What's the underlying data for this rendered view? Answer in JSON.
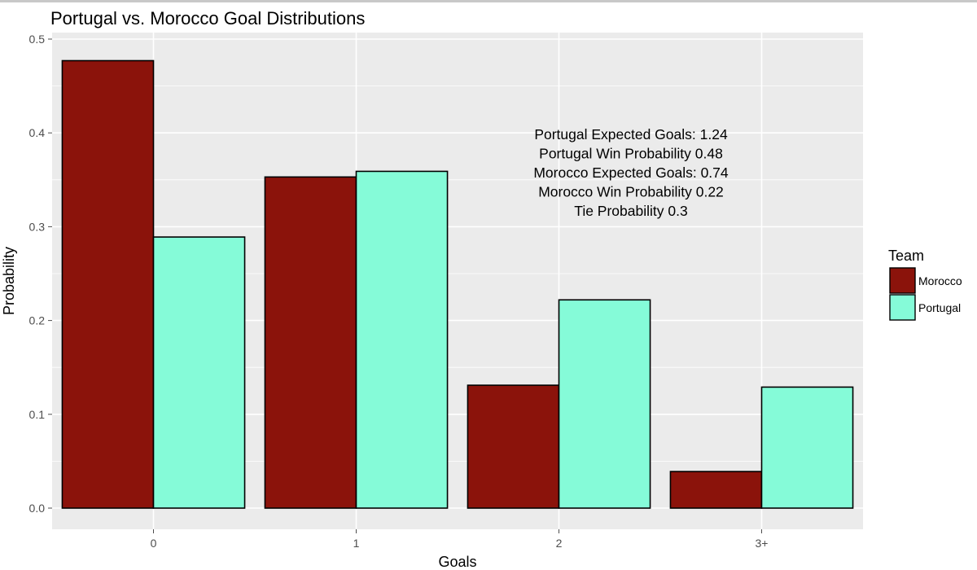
{
  "chart_data": {
    "type": "bar",
    "title": "Portugal vs. Morocco Goal Distributions",
    "xlabel": "Goals",
    "ylabel": "Probability",
    "categories": [
      "0",
      "1",
      "2",
      "3+"
    ],
    "ylim": [
      -0.022,
      0.5
    ],
    "yticks": [
      "0.0",
      "0.1",
      "0.2",
      "0.3",
      "0.4",
      "0.5"
    ],
    "series": [
      {
        "name": "Morocco",
        "color": "#8b130b",
        "values": [
          0.477,
          0.353,
          0.131,
          0.039
        ]
      },
      {
        "name": "Portugal",
        "color": "#85fbd8",
        "values": [
          0.289,
          0.359,
          0.222,
          0.129
        ]
      }
    ],
    "annotation": [
      "Portugal Expected Goals: 1.24",
      "Portugal Win Probability 0.48",
      "Morocco Expected Goals: 0.74",
      "Morocco Win Probability 0.22",
      "Tie Probability 0.3"
    ],
    "legend": {
      "title": "Team",
      "placement": "right"
    },
    "grid": true,
    "panel_background": "#ebebeb",
    "grid_color": "#ffffff"
  }
}
